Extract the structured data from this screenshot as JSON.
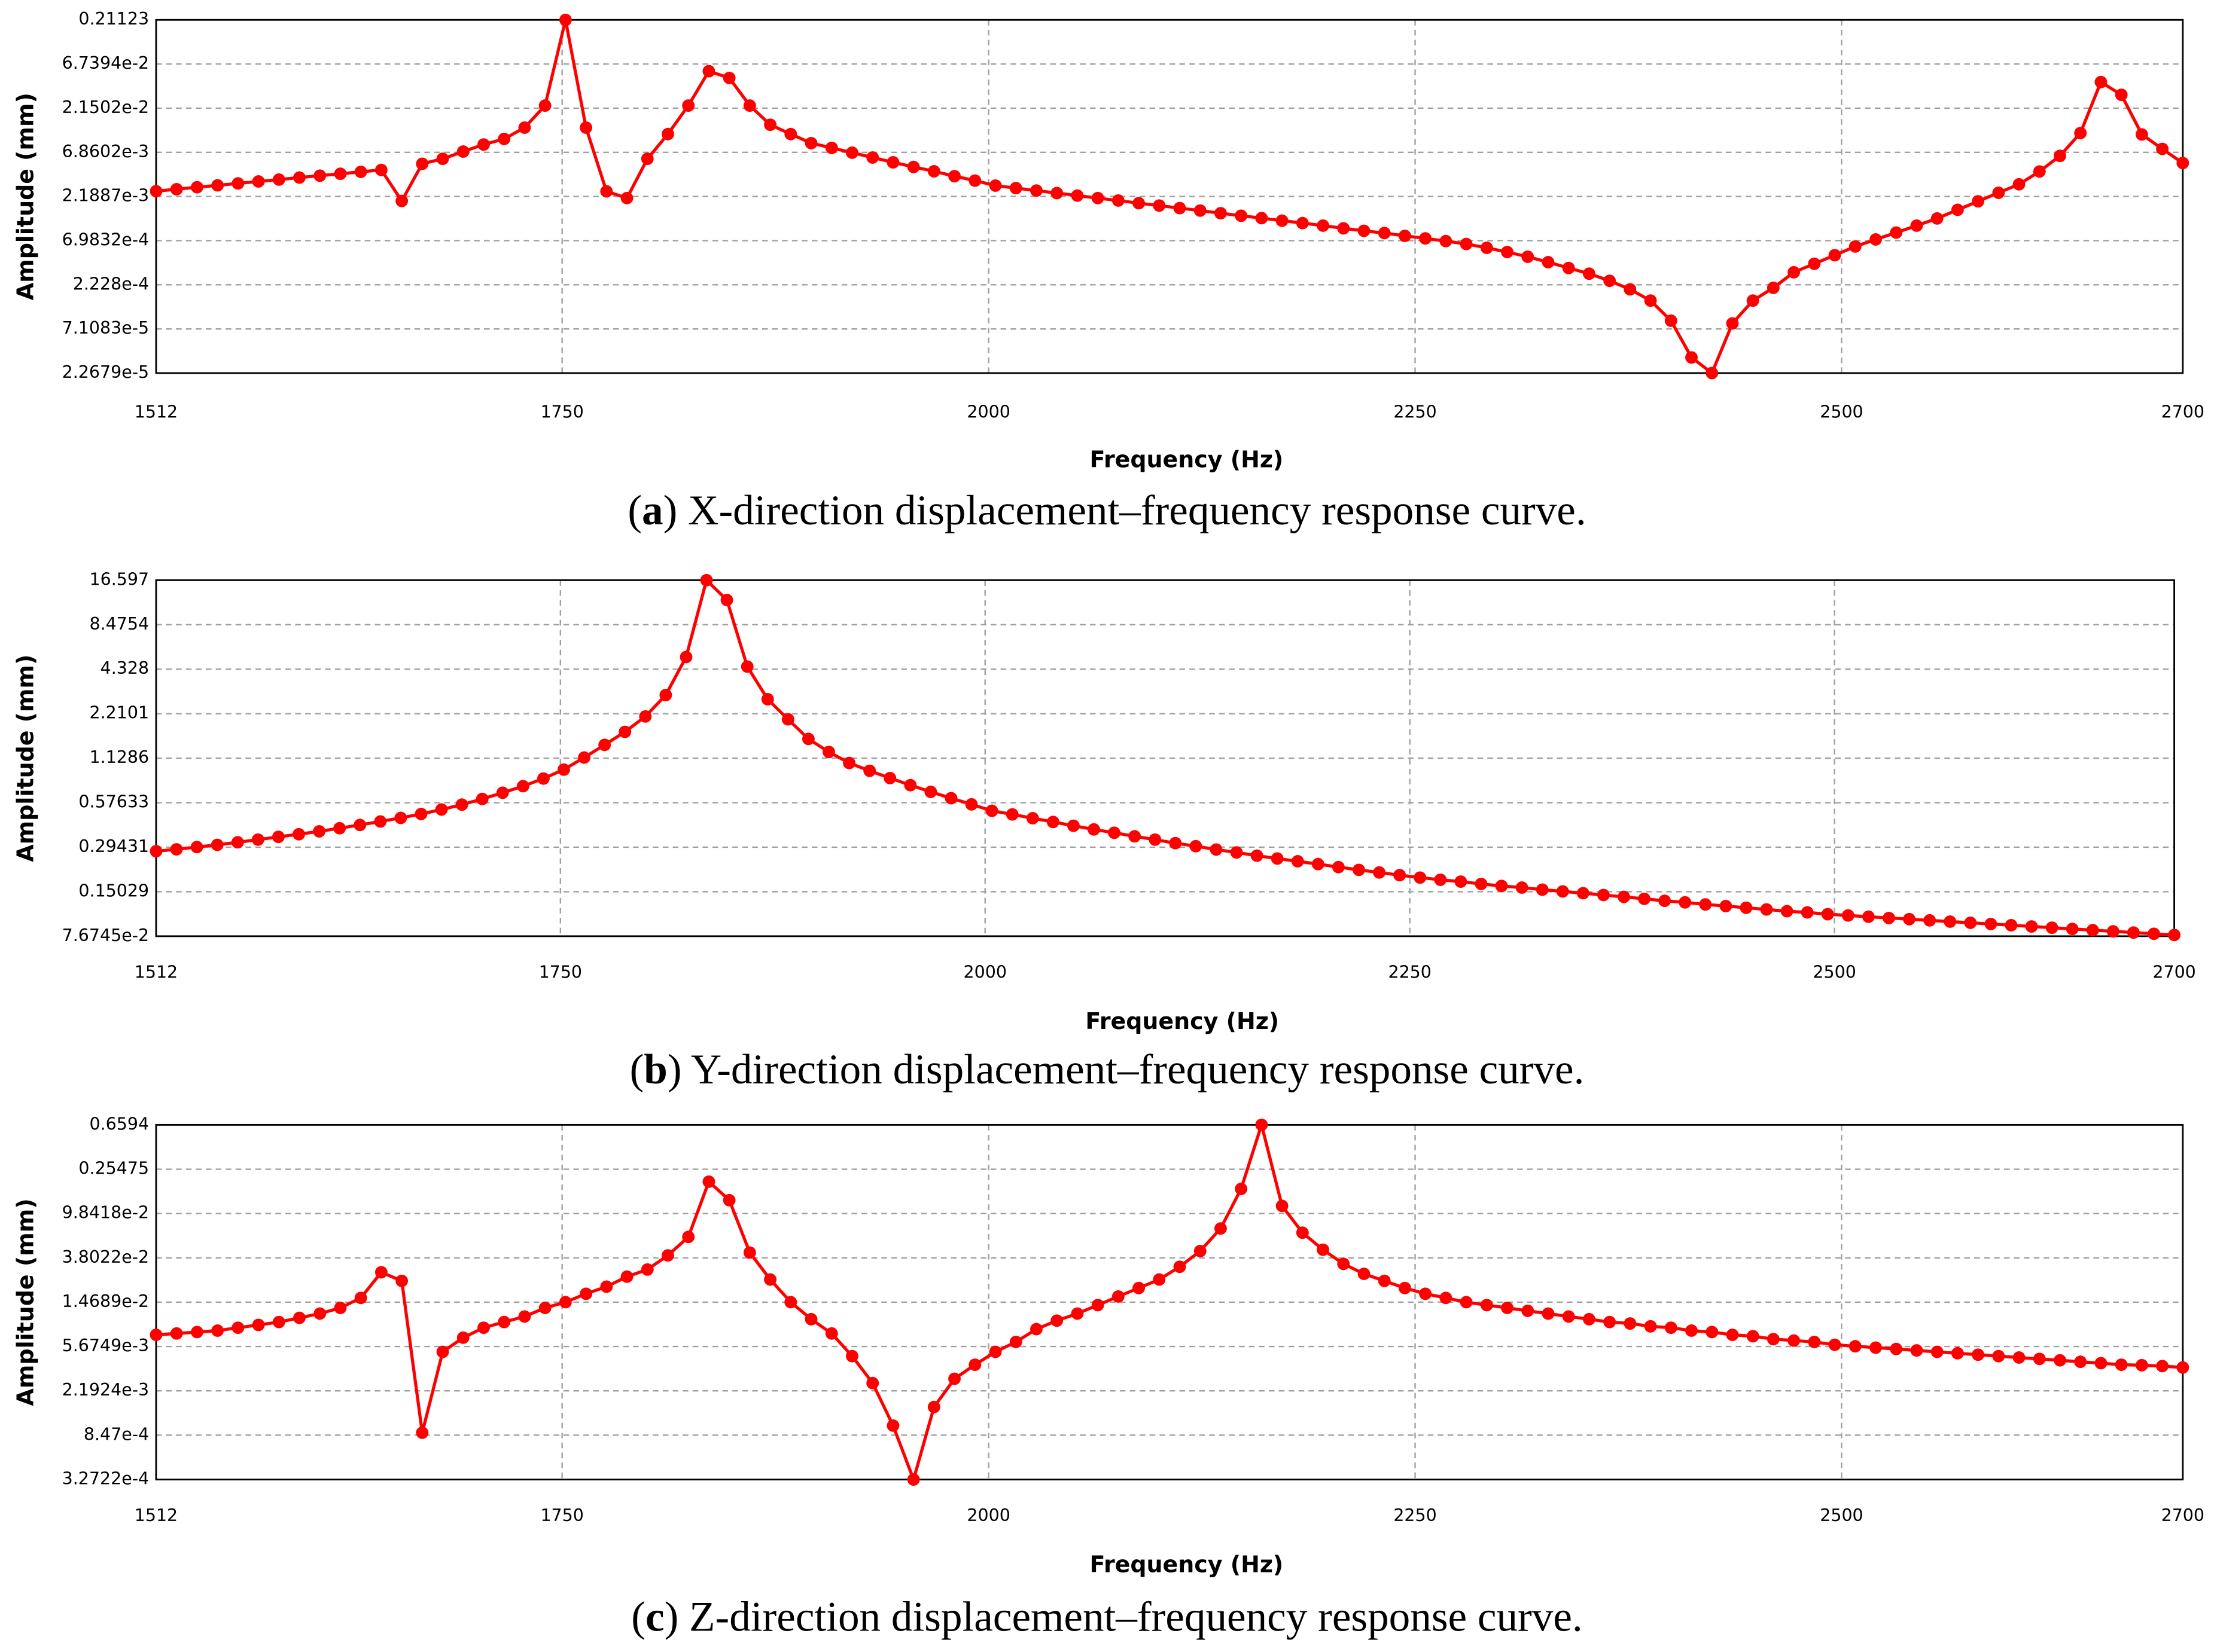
{
  "chart_data": [
    {
      "type": "line",
      "caption": [
        "(",
        "a",
        ") X-direction displacement–frequency response curve."
      ],
      "xlabel": "Frequency (Hz)",
      "ylabel": "Amplitude (mm)",
      "color": "#ff0000",
      "log_y": true,
      "grid": true,
      "xlim": [
        1512,
        2700
      ],
      "xticks": [
        1512,
        1750,
        2000,
        2250,
        2500,
        2700
      ],
      "ylim": [
        2.2679e-05,
        0.21123
      ],
      "yticks": [
        {
          "value": 2.2679e-05,
          "label": "2.2679e-5"
        },
        {
          "value": 7.1083e-05,
          "label": "7.1083e-5"
        },
        {
          "value": 0.0002228,
          "label": "2.228e-4"
        },
        {
          "value": 0.00069832,
          "label": "6.9832e-4"
        },
        {
          "value": 0.0021887,
          "label": "2.1887e-3"
        },
        {
          "value": 0.0068602,
          "label": "6.8602e-3"
        },
        {
          "value": 0.021502,
          "label": "2.1502e-2"
        },
        {
          "value": 0.067394,
          "label": "6.7394e-2"
        },
        0.21123
      ],
      "x": [
        1512,
        1524,
        1536,
        1548,
        1560,
        1572,
        1584,
        1596,
        1608,
        1620,
        1632,
        1644,
        1656,
        1668,
        1680,
        1692,
        1704,
        1716,
        1728,
        1740,
        1752,
        1764,
        1776,
        1788,
        1800,
        1812,
        1824,
        1836,
        1848,
        1860,
        1872,
        1884,
        1896,
        1908,
        1920,
        1932,
        1944,
        1956,
        1968,
        1980,
        1992,
        2004,
        2016,
        2028,
        2040,
        2052,
        2064,
        2076,
        2088,
        2100,
        2112,
        2124,
        2136,
        2148,
        2160,
        2172,
        2184,
        2196,
        2208,
        2220,
        2232,
        2244,
        2256,
        2268,
        2280,
        2292,
        2304,
        2316,
        2328,
        2340,
        2352,
        2364,
        2376,
        2388,
        2400,
        2412,
        2424,
        2436,
        2448,
        2460,
        2472,
        2484,
        2496,
        2508,
        2520,
        2532,
        2544,
        2556,
        2568,
        2580,
        2592,
        2604,
        2616,
        2628,
        2640,
        2652,
        2664,
        2676,
        2688,
        2700
      ],
      "values": [
        0.00251,
        0.00264,
        0.00278,
        0.00292,
        0.00307,
        0.00323,
        0.00339,
        0.00357,
        0.00375,
        0.00394,
        0.00414,
        0.00435,
        0.00195,
        0.0051,
        0.0058,
        0.007,
        0.0084,
        0.0097,
        0.013,
        0.023,
        0.211,
        0.013,
        0.0025,
        0.0021,
        0.0058,
        0.011,
        0.023,
        0.056,
        0.047,
        0.023,
        0.014,
        0.011,
        0.0087,
        0.0077,
        0.0068,
        0.006,
        0.0053,
        0.0047,
        0.0042,
        0.0037,
        0.0033,
        0.0029,
        0.00272,
        0.00255,
        0.00239,
        0.00224,
        0.0021,
        0.00197,
        0.00184,
        0.00173,
        0.00162,
        0.00152,
        0.00142,
        0.00133,
        0.00125,
        0.00117,
        0.0011,
        0.00103,
        0.00096,
        0.0009,
        0.00085,
        0.00079,
        0.00074,
        0.00069,
        0.00064,
        0.00058,
        0.00052,
        0.00046,
        0.0004,
        0.000344,
        0.000297,
        0.000247,
        0.000198,
        0.000148,
        8.8e-05,
        3.4e-05,
        2.27e-05,
        8.2e-05,
        0.000148,
        0.000206,
        0.000308,
        0.000384,
        0.000479,
        0.0006,
        0.00072,
        0.00086,
        0.00103,
        0.00124,
        0.00155,
        0.00193,
        0.00241,
        0.003,
        0.00418,
        0.00626,
        0.0113,
        0.0423,
        0.0304,
        0.0109,
        0.0075,
        0.0052
      ]
    },
    {
      "type": "line",
      "caption": [
        "(",
        "b",
        ") Y-direction displacement–frequency response curve."
      ],
      "xlabel": "Frequency (Hz)",
      "ylabel": "Amplitude (mm)",
      "color": "#ff0000",
      "log_y": true,
      "grid": true,
      "xlim": [
        1512,
        2700
      ],
      "xticks": [
        1512,
        1750,
        2000,
        2250,
        2500,
        2700
      ],
      "ylim": [
        0.076745,
        16.597
      ],
      "yticks": [
        {
          "value": 0.076745,
          "label": "7.6745e-2"
        },
        0.15029,
        0.29431,
        0.57633,
        1.1286,
        2.2101,
        4.328,
        8.4754,
        16.597
      ],
      "x": [
        1512,
        1524,
        1536,
        1548,
        1560,
        1572,
        1584,
        1596,
        1608,
        1620,
        1632,
        1644,
        1656,
        1668,
        1680,
        1692,
        1704,
        1716,
        1728,
        1740,
        1752,
        1764,
        1776,
        1788,
        1800,
        1812,
        1824,
        1836,
        1848,
        1860,
        1872,
        1884,
        1896,
        1908,
        1920,
        1932,
        1944,
        1956,
        1968,
        1980,
        1992,
        2004,
        2016,
        2028,
        2040,
        2052,
        2064,
        2076,
        2088,
        2100,
        2112,
        2124,
        2136,
        2148,
        2160,
        2172,
        2184,
        2196,
        2208,
        2220,
        2232,
        2244,
        2256,
        2268,
        2280,
        2292,
        2304,
        2316,
        2328,
        2340,
        2352,
        2364,
        2376,
        2388,
        2400,
        2412,
        2424,
        2436,
        2448,
        2460,
        2472,
        2484,
        2496,
        2508,
        2520,
        2532,
        2544,
        2556,
        2568,
        2580,
        2592,
        2604,
        2616,
        2628,
        2640,
        2652,
        2664,
        2676,
        2688,
        2700
      ],
      "values": [
        0.277,
        0.285,
        0.295,
        0.305,
        0.317,
        0.33,
        0.344,
        0.358,
        0.374,
        0.392,
        0.412,
        0.434,
        0.458,
        0.486,
        0.52,
        0.56,
        0.61,
        0.67,
        0.74,
        0.83,
        0.95,
        1.14,
        1.38,
        1.68,
        2.12,
        2.93,
        5.2,
        16.6,
        12.3,
        4.5,
        2.75,
        2.03,
        1.51,
        1.24,
        1.05,
        0.933,
        0.836,
        0.751,
        0.679,
        0.617,
        0.562,
        0.51,
        0.483,
        0.456,
        0.431,
        0.407,
        0.385,
        0.366,
        0.347,
        0.33,
        0.313,
        0.299,
        0.284,
        0.272,
        0.259,
        0.248,
        0.238,
        0.228,
        0.218,
        0.209,
        0.201,
        0.193,
        0.186,
        0.18,
        0.175,
        0.169,
        0.164,
        0.16,
        0.155,
        0.151,
        0.147,
        0.143,
        0.139,
        0.135,
        0.131,
        0.128,
        0.124,
        0.121,
        0.118,
        0.115,
        0.112,
        0.11,
        0.107,
        0.105,
        0.103,
        0.101,
        0.0993,
        0.0975,
        0.0957,
        0.094,
        0.0923,
        0.0906,
        0.0889,
        0.0873,
        0.0857,
        0.0841,
        0.0826,
        0.0811,
        0.0796,
        0.0782
      ]
    },
    {
      "type": "line",
      "caption": [
        "(",
        "c",
        ") Z-direction displacement–frequency response curve."
      ],
      "xlabel": "Frequency (Hz)",
      "ylabel": "Amplitude (mm)",
      "color": "#ff0000",
      "log_y": true,
      "grid": true,
      "xlim": [
        1512,
        2700
      ],
      "xticks": [
        1512,
        1750,
        2000,
        2250,
        2500,
        2700
      ],
      "ylim": [
        0.00032722,
        0.6594
      ],
      "yticks": [
        {
          "value": 0.00032722,
          "label": "3.2722e-4"
        },
        {
          "value": 0.000847,
          "label": "8.47e-4"
        },
        {
          "value": 0.0021924,
          "label": "2.1924e-3"
        },
        {
          "value": 0.0056749,
          "label": "5.6749e-3"
        },
        {
          "value": 0.014689,
          "label": "1.4689e-2"
        },
        {
          "value": 0.038022,
          "label": "3.8022e-2"
        },
        {
          "value": 0.098418,
          "label": "9.8418e-2"
        },
        0.25475,
        0.6594
      ],
      "x": [
        1512,
        1524,
        1536,
        1548,
        1560,
        1572,
        1584,
        1596,
        1608,
        1620,
        1632,
        1644,
        1656,
        1668,
        1680,
        1692,
        1704,
        1716,
        1728,
        1740,
        1752,
        1764,
        1776,
        1788,
        1800,
        1812,
        1824,
        1836,
        1848,
        1860,
        1872,
        1884,
        1896,
        1908,
        1920,
        1932,
        1944,
        1956,
        1968,
        1980,
        1992,
        2004,
        2016,
        2028,
        2040,
        2052,
        2064,
        2076,
        2088,
        2100,
        2112,
        2124,
        2136,
        2148,
        2160,
        2172,
        2184,
        2196,
        2208,
        2220,
        2232,
        2244,
        2256,
        2268,
        2280,
        2292,
        2304,
        2316,
        2328,
        2340,
        2352,
        2364,
        2376,
        2388,
        2400,
        2412,
        2424,
        2436,
        2448,
        2460,
        2472,
        2484,
        2496,
        2508,
        2520,
        2532,
        2544,
        2556,
        2568,
        2580,
        2592,
        2604,
        2616,
        2628,
        2640,
        2652,
        2664,
        2676,
        2688,
        2700
      ],
      "values": [
        0.00729,
        0.00751,
        0.00774,
        0.00798,
        0.00849,
        0.00902,
        0.00959,
        0.0105,
        0.0115,
        0.013,
        0.0161,
        0.0279,
        0.0232,
        0.000893,
        0.00506,
        0.00686,
        0.00849,
        0.00959,
        0.0108,
        0.013,
        0.0147,
        0.0176,
        0.0205,
        0.0254,
        0.0296,
        0.0401,
        0.0596,
        0.195,
        0.131,
        0.0426,
        0.0239,
        0.0147,
        0.0102,
        0.00751,
        0.00462,
        0.00259,
        0.00104,
        0.000327,
        0.00155,
        0.00284,
        0.00384,
        0.00506,
        0.00626,
        0.00824,
        0.00989,
        0.0115,
        0.0138,
        0.0166,
        0.0199,
        0.0239,
        0.0314,
        0.044,
        0.0714,
        0.167,
        0.66,
        0.116,
        0.0652,
        0.0453,
        0.0334,
        0.027,
        0.0232,
        0.0199,
        0.0176,
        0.0161,
        0.0147,
        0.0138,
        0.013,
        0.0122,
        0.0115,
        0.0108,
        0.0102,
        0.00959,
        0.0093,
        0.00875,
        0.00849,
        0.00798,
        0.00774,
        0.00729,
        0.00708,
        0.00665,
        0.00645,
        0.00626,
        0.00589,
        0.00571,
        0.00554,
        0.00538,
        0.00522,
        0.00506,
        0.00491,
        0.00476,
        0.00462,
        0.00448,
        0.00435,
        0.00422,
        0.00409,
        0.00397,
        0.00384,
        0.0038,
        0.00373,
        0.00362
      ]
    }
  ]
}
